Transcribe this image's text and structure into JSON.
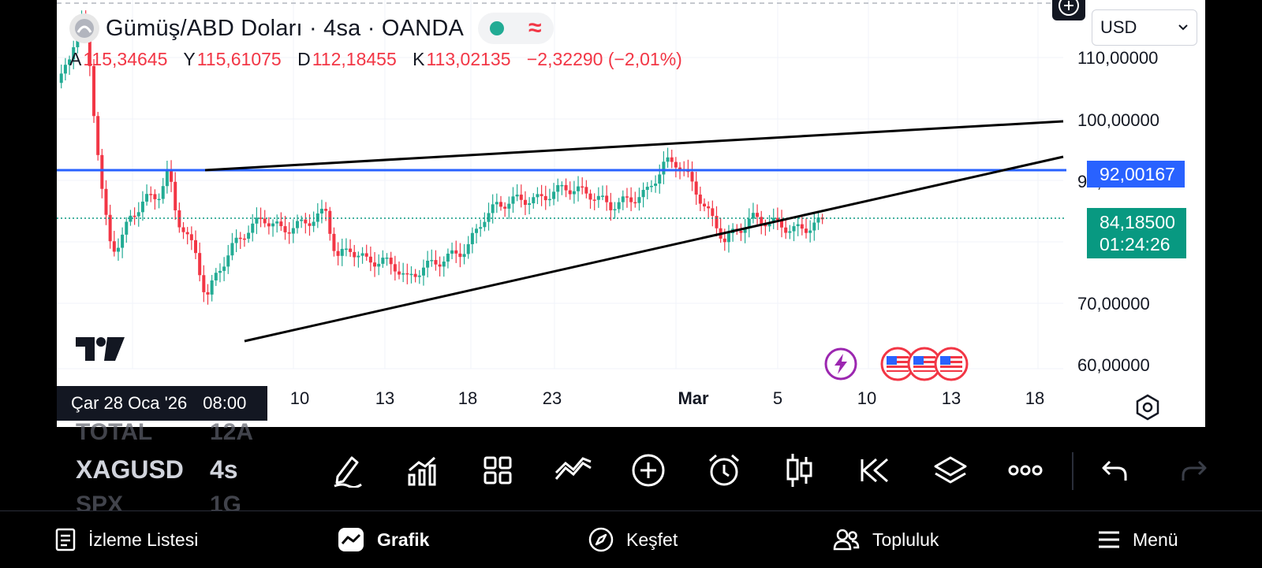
{
  "symbol": {
    "title": "Gümüş/ABD Doları · 4sa · OANDA",
    "ohlc": [
      {
        "key": "A",
        "value": "115,34645"
      },
      {
        "key": "Y",
        "value": "115,61075"
      },
      {
        "key": "D",
        "value": "112,18455"
      },
      {
        "key": "K",
        "value": "113,02135"
      }
    ],
    "change": "−2,32290 (−2,01%)"
  },
  "currency": "USD",
  "price_axis": {
    "ticks": [
      "110,00000",
      "100,00000",
      "90,00000",
      "70,00000",
      "60,00000"
    ],
    "hline_label": "92,00167",
    "last_price": "84,18500",
    "countdown": "01:24:26"
  },
  "time_axis": {
    "ticks": [
      "10",
      "13",
      "18",
      "23",
      "Mar",
      "5",
      "10",
      "13",
      "18"
    ],
    "hover_date": "Çar 28 Oca '26",
    "hover_time": "08:00"
  },
  "watchlist": {
    "ghost_above": [
      "TOTAL",
      "12A"
    ],
    "ghost_below": [
      "SPX",
      "1G"
    ],
    "symbol": "XAGUSD",
    "timeframe": "4s"
  },
  "toolbar": [
    "pencil-icon",
    "indicators-icon",
    "templates-icon",
    "compare-icon",
    "add-icon",
    "alert-icon",
    "candles-icon",
    "replay-icon",
    "layers-icon",
    "more-icon",
    "undo-icon",
    "redo-icon"
  ],
  "nav": [
    {
      "label": "İzleme Listesi",
      "icon": "watchlist-icon"
    },
    {
      "label": "Grafik",
      "icon": "chart-icon"
    },
    {
      "label": "Keşfet",
      "icon": "compass-icon"
    },
    {
      "label": "Topluluk",
      "icon": "community-icon"
    },
    {
      "label": "Menü",
      "icon": "menu-icon"
    }
  ],
  "colors": {
    "up": "#22ab94",
    "down": "#f23645",
    "hline": "#2962ff",
    "last_price": "#089981"
  }
}
